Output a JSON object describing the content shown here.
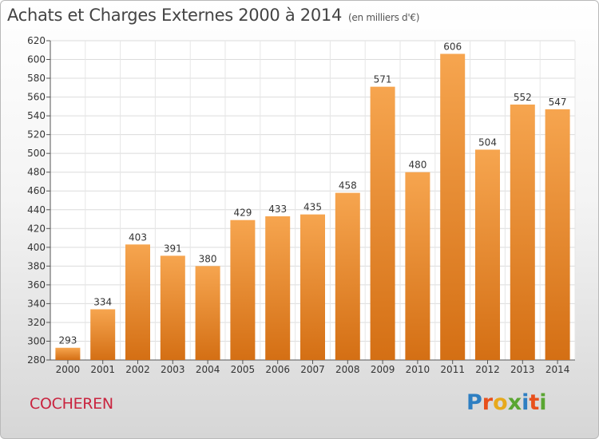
{
  "header": {
    "title": "Achats et Charges Externes 2000 à 2014",
    "unit": "(en milliers d'€)"
  },
  "footer": {
    "commune": "COCHEREN",
    "logo_text": "Proxiti"
  },
  "colors": {
    "bar_top": "#f6a54f",
    "bar_bottom": "#d46f14",
    "commune": "#c9243f",
    "logo": [
      "#2e7fc2",
      "#e8501c",
      "#e7a91c",
      "#5aa632",
      "#2e7fc2",
      "#e8501c",
      "#5aa632"
    ]
  },
  "chart_data": {
    "type": "bar",
    "categories": [
      "2000",
      "2001",
      "2002",
      "2003",
      "2004",
      "2005",
      "2006",
      "2007",
      "2008",
      "2009",
      "2010",
      "2011",
      "2012",
      "2013",
      "2014"
    ],
    "values": [
      293,
      334,
      403,
      391,
      380,
      429,
      433,
      435,
      458,
      571,
      480,
      606,
      504,
      552,
      547
    ],
    "title": "Achats et Charges Externes 2000 à 2014",
    "ylim": [
      280,
      620
    ],
    "yticks": [
      280,
      300,
      320,
      340,
      360,
      380,
      400,
      420,
      440,
      460,
      480,
      500,
      520,
      540,
      560,
      580,
      600,
      620
    ],
    "grid": true,
    "data_labels": true
  }
}
